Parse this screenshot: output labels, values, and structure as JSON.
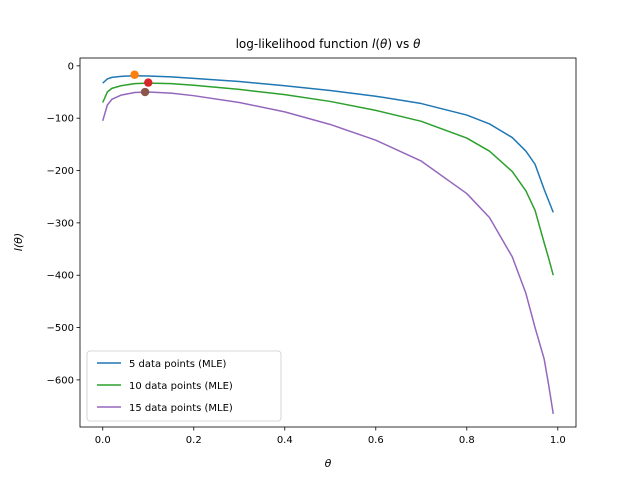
{
  "chart_data": {
    "type": "line",
    "title": "log-likelihood function l(θ) vs θ",
    "title_parts": [
      "log-likelihood function ",
      "l",
      "(",
      "θ",
      ") vs ",
      "θ"
    ],
    "xlabel": "θ",
    "ylabel": "l(θ)",
    "xlim": [
      -0.05,
      1.04
    ],
    "ylim": [
      -690,
      15
    ],
    "xticks": [
      0.0,
      0.2,
      0.4,
      0.6,
      0.8,
      1.0
    ],
    "xtick_labels": [
      "0.0",
      "0.2",
      "0.4",
      "0.6",
      "0.8",
      "1.0"
    ],
    "yticks": [
      0,
      -100,
      -200,
      -300,
      -400,
      -500,
      -600
    ],
    "ytick_labels": [
      "0",
      "−100",
      "−200",
      "−300",
      "−400",
      "−500",
      "−600"
    ],
    "grid": false,
    "legend_position": "lower-left",
    "series": [
      {
        "name": "5 data points (MLE)",
        "color": "#1f77b4",
        "x": [
          0.0,
          0.01,
          0.02,
          0.04,
          0.07,
          0.1,
          0.15,
          0.2,
          0.3,
          0.4,
          0.5,
          0.6,
          0.7,
          0.8,
          0.85,
          0.9,
          0.93,
          0.95,
          0.97,
          0.98,
          0.99
        ],
        "y": [
          -33,
          -25,
          -22,
          -20,
          -19,
          -19.5,
          -21,
          -24,
          -30,
          -38,
          -47,
          -58,
          -72,
          -94,
          -111,
          -137,
          -163,
          -188,
          -236,
          -258,
          -280
        ]
      },
      {
        "name": "10 data points (MLE)",
        "color": "#2ca02c",
        "x": [
          0.0,
          0.01,
          0.02,
          0.04,
          0.07,
          0.1,
          0.15,
          0.2,
          0.3,
          0.4,
          0.5,
          0.6,
          0.7,
          0.8,
          0.85,
          0.9,
          0.93,
          0.95,
          0.97,
          0.98,
          0.99
        ],
        "y": [
          -70,
          -50,
          -43,
          -38,
          -34,
          -33,
          -34,
          -37,
          -45,
          -55,
          -68,
          -85,
          -106,
          -138,
          -163,
          -202,
          -239,
          -276,
          -338,
          -368,
          -400
        ]
      },
      {
        "name": "15 data points (MLE)",
        "color": "#9467bd",
        "x": [
          0.0,
          0.01,
          0.02,
          0.04,
          0.07,
          0.1,
          0.15,
          0.2,
          0.3,
          0.4,
          0.5,
          0.6,
          0.7,
          0.8,
          0.85,
          0.9,
          0.93,
          0.95,
          0.97,
          0.98,
          0.99
        ],
        "y": [
          -105,
          -75,
          -64,
          -56,
          -51,
          -50,
          -52,
          -57,
          -70,
          -88,
          -112,
          -142,
          -182,
          -244,
          -290,
          -365,
          -435,
          -500,
          -560,
          -610,
          -665
        ]
      }
    ],
    "mle_points": [
      {
        "x": 0.07,
        "y": -17,
        "color": "#ff7f0e"
      },
      {
        "x": 0.1,
        "y": -32,
        "color": "#d62728"
      },
      {
        "x": 0.093,
        "y": -50,
        "color": "#8c564b"
      }
    ]
  }
}
